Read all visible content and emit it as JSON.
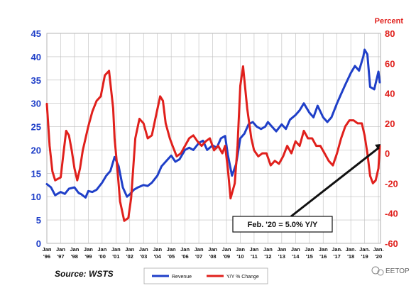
{
  "chart_data": {
    "type": "line",
    "right_axis_title": "Percent",
    "left_axis": {
      "ylim": [
        0,
        45
      ],
      "ticks": [
        "0",
        "5",
        "10",
        "15",
        "20",
        "25",
        "30",
        "35",
        "40",
        "45"
      ],
      "color": "#1f3fc8"
    },
    "right_axis": {
      "ylim": [
        -60,
        80
      ],
      "ticks": [
        "-60",
        "-40",
        "-20",
        "0",
        "20",
        "40",
        "60",
        "80"
      ],
      "color": "#e0201c"
    },
    "x_ticks": [
      {
        "top": "Jan",
        "bottom": "'96"
      },
      {
        "top": "Jan",
        "bottom": "'97"
      },
      {
        "top": "Jan",
        "bottom": "'98"
      },
      {
        "top": "Jan",
        "bottom": "'99"
      },
      {
        "top": "Jan",
        "bottom": "'00"
      },
      {
        "top": "Jan",
        "bottom": "'01"
      },
      {
        "top": "Jan",
        "bottom": "'02"
      },
      {
        "top": "Jan",
        "bottom": "'03"
      },
      {
        "top": "Jan",
        "bottom": "'04"
      },
      {
        "top": "Jan",
        "bottom": "'05"
      },
      {
        "top": "Jan",
        "bottom": "'06"
      },
      {
        "top": "Jan",
        "bottom": "'07"
      },
      {
        "top": "Jan",
        "bottom": "'08"
      },
      {
        "top": "Jan",
        "bottom": "'09"
      },
      {
        "top": "Jan",
        "bottom": "'10"
      },
      {
        "top": "Jan",
        "bottom": "'11"
      },
      {
        "top": "Jan",
        "bottom": "'12"
      },
      {
        "top": "Jan",
        "bottom": "'13"
      },
      {
        "top": "Jan",
        "bottom": "'14"
      },
      {
        "top": "Jan",
        "bottom": "'15"
      },
      {
        "top": "Jan",
        "bottom": "'16"
      },
      {
        "top": "Jan.",
        "bottom": "'17"
      },
      {
        "top": "Jan.",
        "bottom": "'18"
      },
      {
        "top": "Jan.",
        "bottom": "'19"
      },
      {
        "top": "Jan.",
        "bottom": "'20"
      }
    ],
    "grid": true,
    "legend_position": "bottom-center",
    "series": [
      {
        "name": "Revenue",
        "axis": "left",
        "color": "#1f3fc8",
        "x": [
          1996.0,
          1996.3,
          1996.6,
          1997.0,
          1997.3,
          1997.6,
          1998.0,
          1998.3,
          1998.5,
          1998.8,
          1999.0,
          1999.3,
          1999.6,
          2000.0,
          2000.3,
          2000.6,
          2000.9,
          2001.2,
          2001.5,
          2001.8,
          2002.0,
          2002.3,
          2002.6,
          2003.0,
          2003.3,
          2003.6,
          2004.0,
          2004.3,
          2004.6,
          2005.0,
          2005.3,
          2005.6,
          2006.0,
          2006.3,
          2006.6,
          2007.0,
          2007.3,
          2007.6,
          2008.0,
          2008.3,
          2008.6,
          2008.9,
          2009.1,
          2009.4,
          2009.7,
          2010.0,
          2010.3,
          2010.6,
          2010.9,
          2011.2,
          2011.5,
          2011.8,
          2012.0,
          2012.3,
          2012.6,
          2013.0,
          2013.3,
          2013.6,
          2014.0,
          2014.3,
          2014.6,
          2015.0,
          2015.3,
          2015.6,
          2016.0,
          2016.3,
          2016.6,
          2017.0,
          2017.3,
          2017.6,
          2018.0,
          2018.3,
          2018.6,
          2018.9,
          2019.0,
          2019.2,
          2019.4,
          2019.7,
          2020.0,
          2020.1
        ],
        "values": [
          12.7,
          12.0,
          10.3,
          11.0,
          10.6,
          11.7,
          12.0,
          10.8,
          10.5,
          9.8,
          11.2,
          11.0,
          11.5,
          13.0,
          14.5,
          15.5,
          18.5,
          16.5,
          12.0,
          10.0,
          10.5,
          11.5,
          12.0,
          12.5,
          12.3,
          13.0,
          14.5,
          16.5,
          17.5,
          18.8,
          17.5,
          18.0,
          20.0,
          20.5,
          20.0,
          21.5,
          22.0,
          20.0,
          21.0,
          20.5,
          22.5,
          23.0,
          19.0,
          14.5,
          17.0,
          22.5,
          23.5,
          25.5,
          26.0,
          25.0,
          24.5,
          25.0,
          26.0,
          25.0,
          24.0,
          25.5,
          24.5,
          26.5,
          27.5,
          28.5,
          30.0,
          28.0,
          27.0,
          29.5,
          27.0,
          26.0,
          27.0,
          30.0,
          32.0,
          34.0,
          36.5,
          38.0,
          37.0,
          40.0,
          41.5,
          40.5,
          33.5,
          33.0,
          36.8,
          34.5
        ]
      },
      {
        "name": "Y/Y % Change",
        "axis": "right",
        "color": "#e0201c",
        "x": [
          1996.0,
          1996.2,
          1996.4,
          1996.6,
          1996.8,
          1997.0,
          1997.2,
          1997.4,
          1997.6,
          1997.8,
          1998.0,
          1998.2,
          1998.4,
          1998.6,
          1998.8,
          1999.0,
          1999.3,
          1999.6,
          1999.9,
          2000.2,
          2000.5,
          2000.8,
          2000.9,
          2001.1,
          2001.3,
          2001.6,
          2001.9,
          2002.1,
          2002.4,
          2002.7,
          2003.0,
          2003.3,
          2003.6,
          2003.9,
          2004.2,
          2004.4,
          2004.6,
          2004.9,
          2005.1,
          2005.4,
          2005.7,
          2006.0,
          2006.3,
          2006.6,
          2006.9,
          2007.2,
          2007.5,
          2007.8,
          2008.1,
          2008.4,
          2008.7,
          2008.9,
          2009.1,
          2009.3,
          2009.6,
          2009.8,
          2010.0,
          2010.2,
          2010.5,
          2010.8,
          2011.0,
          2011.3,
          2011.6,
          2011.9,
          2012.2,
          2012.5,
          2012.8,
          2013.1,
          2013.4,
          2013.7,
          2014.0,
          2014.3,
          2014.6,
          2014.9,
          2015.2,
          2015.5,
          2015.8,
          2016.1,
          2016.4,
          2016.7,
          2017.0,
          2017.3,
          2017.6,
          2017.9,
          2018.2,
          2018.5,
          2018.8,
          2019.0,
          2019.2,
          2019.4,
          2019.6,
          2019.8,
          2020.0,
          2020.1
        ],
        "values": [
          33,
          5,
          -12,
          -18,
          -17,
          -16,
          0,
          15,
          12,
          2,
          -10,
          -18,
          -10,
          2,
          10,
          18,
          28,
          35,
          38,
          52,
          55,
          30,
          10,
          -10,
          -32,
          -45,
          -43,
          -30,
          10,
          23,
          20,
          10,
          12,
          25,
          38,
          35,
          20,
          10,
          5,
          -2,
          0,
          5,
          10,
          12,
          8,
          5,
          8,
          10,
          2,
          5,
          0,
          5,
          -10,
          -30,
          -20,
          5,
          45,
          58,
          30,
          10,
          2,
          -2,
          0,
          0,
          -8,
          -5,
          -7,
          -2,
          5,
          0,
          8,
          5,
          15,
          10,
          10,
          5,
          5,
          0,
          -5,
          -8,
          0,
          10,
          18,
          22,
          22,
          20,
          20,
          12,
          0,
          -15,
          -20,
          -18,
          -10,
          5.0
        ]
      }
    ],
    "annotation": "Feb. '20 = 5.0% Y/Y",
    "source": "Source: WSTS"
  },
  "legend": [
    {
      "label": "Revenue",
      "color": "#1f3fc8"
    },
    {
      "label": "Y/Y % Change",
      "color": "#e0201c"
    }
  ],
  "watermark": "EETOP"
}
